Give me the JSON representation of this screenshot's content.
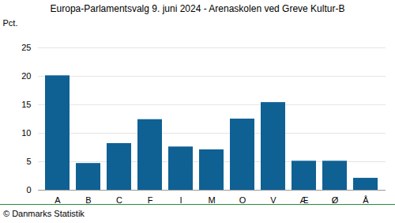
{
  "chart_data": {
    "type": "bar",
    "title": "Europa-Parlamentsvalg 9. juni 2024 - Arenaskolen ved Greve Kultur-B",
    "y_label": "Pct.",
    "caption": "© Danmarks Statistik",
    "categories": [
      "A",
      "B",
      "C",
      "F",
      "I",
      "M",
      "O",
      "V",
      "Æ",
      "Ø",
      "Å"
    ],
    "values": [
      20.1,
      4.7,
      8.2,
      12.4,
      7.6,
      7.1,
      12.5,
      15.4,
      5.1,
      5.1,
      2.1
    ],
    "color": "#0f6194",
    "ylim": [
      0,
      25
    ],
    "yticks": [
      0,
      5,
      10,
      15,
      20,
      25
    ],
    "grid": true
  }
}
